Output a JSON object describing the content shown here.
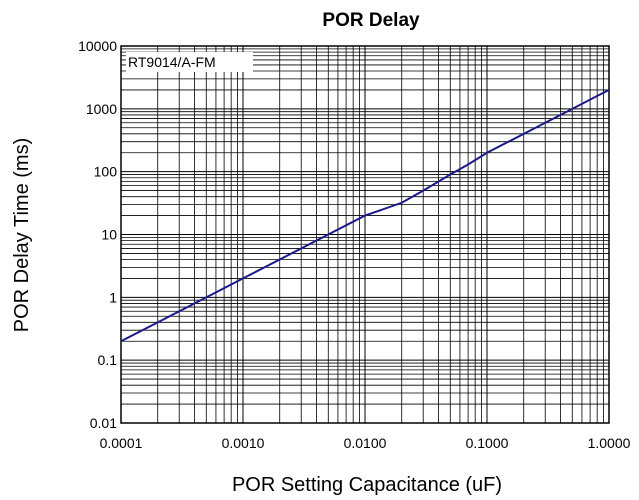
{
  "chart_data": {
    "type": "line",
    "title": "POR Delay",
    "xlabel": "POR Setting Capacitance (uF)",
    "ylabel": "POR Delay Time (ms)",
    "x_scale": "log",
    "y_scale": "log",
    "xlim": [
      0.0001,
      1.0
    ],
    "ylim": [
      0.01,
      10000
    ],
    "x_tick_labels": [
      "0.0001",
      "0.0010",
      "0.0100",
      "0.1000",
      "1.0000"
    ],
    "y_tick_labels": [
      "0.01",
      "0.1",
      "1",
      "10",
      "100",
      "1000",
      "10000"
    ],
    "grid": true,
    "legend_position": "top-left",
    "series": [
      {
        "name": "RT9014/A-FM",
        "color": "#1a1a8c",
        "x": [
          0.0001,
          0.0002,
          0.0005,
          0.0008,
          0.001,
          0.002,
          0.005,
          0.01,
          0.02,
          0.03,
          0.05,
          0.07,
          0.1,
          0.2,
          0.5,
          0.7,
          1.0
        ],
        "y": [
          0.2,
          0.4,
          1.0,
          1.6,
          2.0,
          4.0,
          10,
          20,
          32,
          50,
          90,
          130,
          200,
          400,
          1000,
          1400,
          2000
        ]
      }
    ]
  }
}
